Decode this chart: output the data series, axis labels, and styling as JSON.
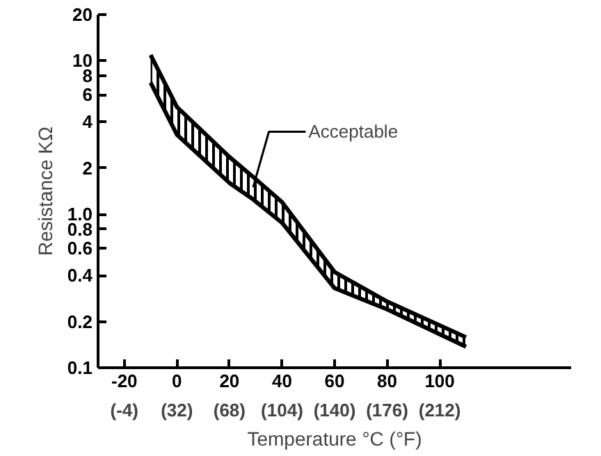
{
  "chart_data": {
    "type": "line",
    "x": [
      -10,
      0,
      20,
      29,
      40,
      60,
      80,
      110
    ],
    "series": [
      {
        "color": "#000000",
        "values": [
          10.9,
          5.0,
          2.36,
          1.75,
          1.2,
          0.42,
          0.27,
          0.158
        ],
        "lower": [
          7.2,
          3.3,
          1.6,
          1.25,
          0.88,
          0.33,
          0.24,
          0.137
        ],
        "upper": [
          10.9,
          5.0,
          2.36,
          1.75,
          1.2,
          0.42,
          0.27,
          0.158
        ]
      },
      {
        "color": "#000000",
        "values": [
          7.2,
          3.3,
          1.6,
          1.25,
          0.88,
          0.33,
          0.24,
          0.137
        ]
      }
    ],
    "xlabel": "Temperature °C (°F)",
    "ylabel": "Resistance KΩ",
    "annotations": [
      {
        "text": "Acceptable",
        "x": 29,
        "y": 1.5
      }
    ],
    "log": "y",
    "xlim": [
      -30,
      150
    ],
    "ylim": [
      0.1,
      20
    ],
    "xticks": [
      -20,
      0,
      20,
      40,
      60,
      80,
      100
    ],
    "x2lim": [
      -22,
      302
    ],
    "x2ticks": [
      {
        "value": -4,
        "label": "(-4)"
      },
      {
        "value": 32,
        "label": "(32)"
      },
      {
        "value": 68,
        "label": "(68)"
      },
      {
        "value": 104,
        "label": "(104)"
      },
      {
        "value": 140,
        "label": "(140)"
      },
      {
        "value": 176,
        "label": "(176)"
      },
      {
        "value": 212,
        "label": "(212)"
      }
    ],
    "yticks": [
      0.1,
      0.2,
      0.4,
      0.6,
      0.8,
      {
        "value": 1,
        "label": "1.0"
      },
      2,
      4,
      6,
      8,
      10,
      20
    ],
    "grid": false
  }
}
